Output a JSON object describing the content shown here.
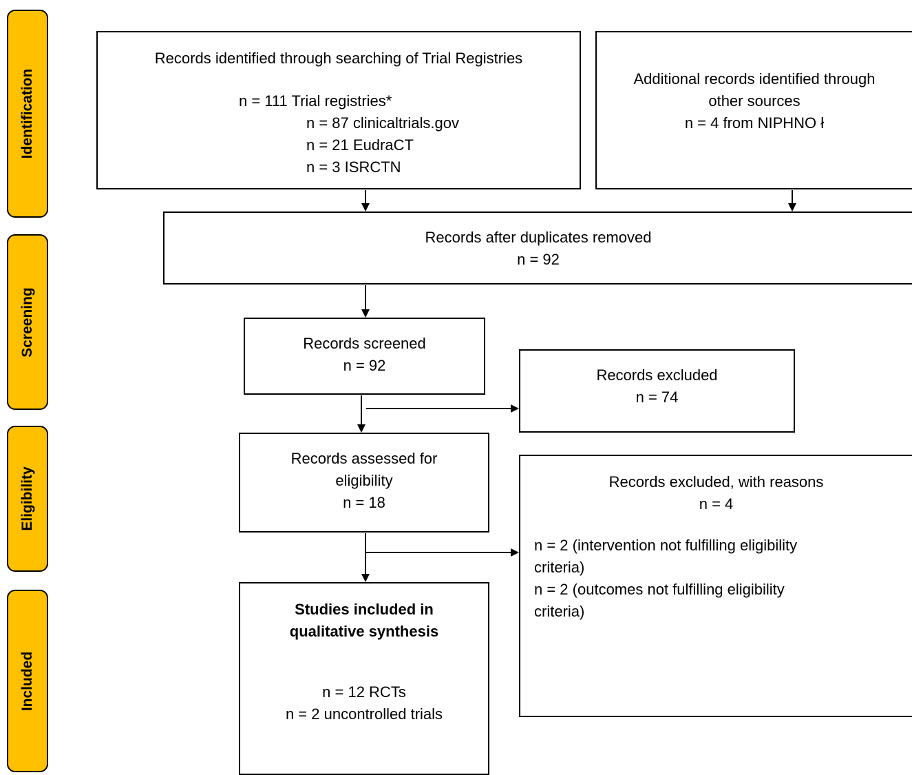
{
  "phases": {
    "identification": "Identification",
    "screening": "Screening",
    "eligibility": "Eligibility",
    "included": "Included"
  },
  "boxes": {
    "registries": {
      "title": "Records identified through searching of Trial Registries",
      "total": "n = 111 Trial registries*",
      "sub1": "n = 87 clinicaltrials.gov",
      "sub2": "n = 21 EudraCT",
      "sub3": "n = 3 ISRCTN"
    },
    "additional": {
      "line1": "Additional records identified through",
      "line2": "other sources",
      "line3": "n = 4 from NIPHNO ł"
    },
    "duplicates": {
      "title": "Records after duplicates removed",
      "count": "n = 92"
    },
    "screened": {
      "title": "Records screened",
      "count": "n = 92"
    },
    "excluded": {
      "title": "Records excluded",
      "count": "n = 74"
    },
    "assessed": {
      "line1": "Records assessed for",
      "line2": "eligibility",
      "count": "n = 18"
    },
    "excluded_reasons": {
      "title": "Records excluded, with reasons",
      "count": "n = 4",
      "r1a": "n = 2 (intervention not fulfilling eligibility",
      "r1b": "criteria)",
      "r2a": "n = 2 (outcomes not fulfilling eligibility",
      "r2b": "criteria)"
    },
    "included": {
      "title1": "Studies included in",
      "title2": "qualitative synthesis",
      "count1": "n = 12 RCTs",
      "count2": "n = 2 uncontrolled trials"
    }
  }
}
